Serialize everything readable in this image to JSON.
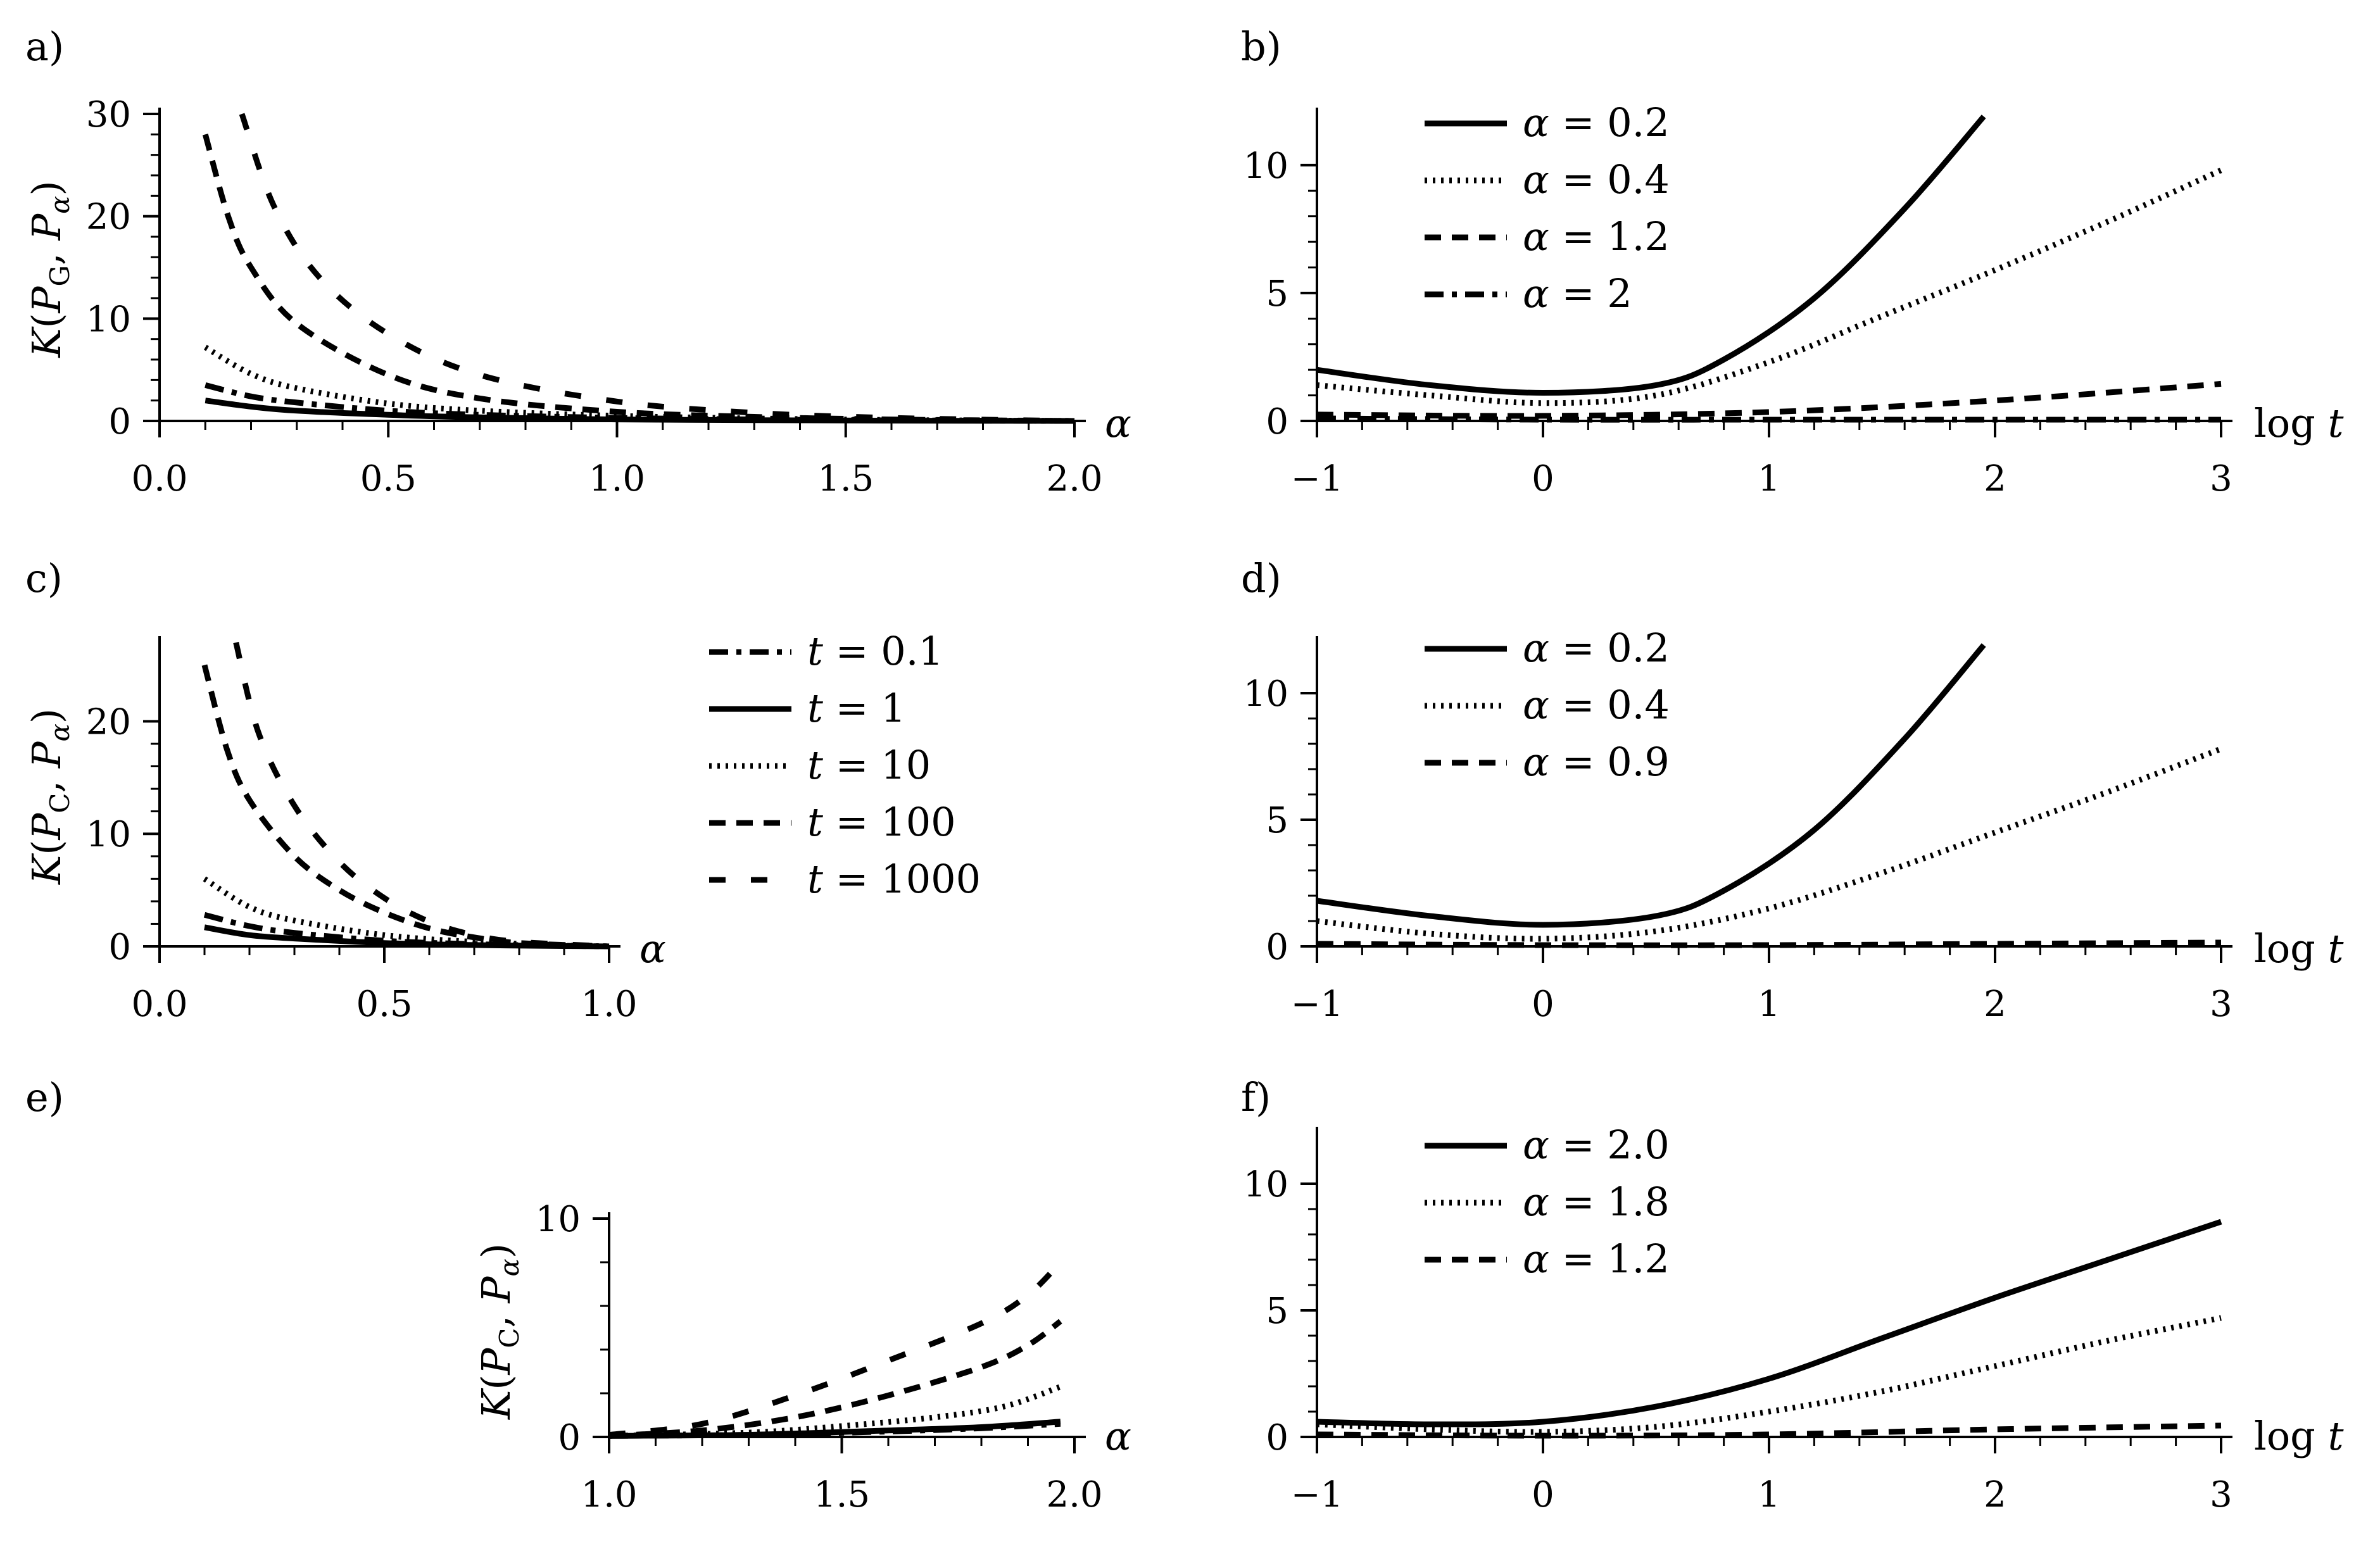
{
  "chart_data": [
    {
      "id": "a",
      "panel_label": "a)",
      "type": "line",
      "xlabel": "α",
      "ylabel": "K(P_G, P_α)",
      "xlim": [
        0,
        2
      ],
      "ylim": [
        0,
        30
      ],
      "xticks": [
        "0.0",
        "0.5",
        "1.0",
        "1.5",
        "2.0"
      ],
      "xtick_values": [
        0,
        0.5,
        1.0,
        1.5,
        2.0
      ],
      "yticks": [
        "0",
        "10",
        "20",
        "30"
      ],
      "ytick_values": [
        0,
        10,
        20,
        30
      ],
      "series": [
        {
          "name": "t = 0.1",
          "style": "dashdot",
          "x": [
            0.1,
            0.2,
            0.3,
            0.5,
            0.7,
            1.0,
            1.3,
            1.6,
            2.0
          ],
          "y": [
            3.5,
            2.4,
            1.8,
            1.0,
            0.6,
            0.3,
            0.15,
            0.06,
            0
          ]
        },
        {
          "name": "t = 1",
          "style": "solid",
          "x": [
            0.1,
            0.2,
            0.3,
            0.5,
            0.7,
            1.0,
            1.3,
            1.6,
            2.0
          ],
          "y": [
            2.0,
            1.4,
            1.0,
            0.6,
            0.35,
            0.15,
            0.08,
            0.03,
            0
          ]
        },
        {
          "name": "t = 10",
          "style": "dotted",
          "x": [
            0.1,
            0.2,
            0.3,
            0.5,
            0.7,
            1.0,
            1.3,
            1.6,
            2.0
          ],
          "y": [
            7.2,
            4.6,
            3.2,
            1.7,
            1.0,
            0.5,
            0.25,
            0.1,
            0
          ]
        },
        {
          "name": "t = 100",
          "style": "dashed",
          "x": [
            0.1,
            0.15,
            0.2,
            0.3,
            0.5,
            0.7,
            1.0,
            1.3,
            1.6,
            2.0
          ],
          "y": [
            28,
            20,
            15,
            9.5,
            4.5,
            2.2,
            0.9,
            0.4,
            0.15,
            0
          ]
        },
        {
          "name": "t = 1000",
          "style": "dashed-wide",
          "x": [
            0.18,
            0.25,
            0.35,
            0.5,
            0.7,
            1.0,
            1.3,
            1.6,
            2.0
          ],
          "y": [
            30,
            21,
            14,
            8.5,
            4.5,
            1.9,
            0.8,
            0.3,
            0
          ]
        }
      ]
    },
    {
      "id": "b",
      "panel_label": "b)",
      "type": "line",
      "xlabel": "log t",
      "ylabel": "",
      "xlim": [
        -1,
        3
      ],
      "ylim": [
        0,
        12
      ],
      "xticks": [
        "−1",
        "0",
        "1",
        "2",
        "3"
      ],
      "xtick_values": [
        -1,
        0,
        1,
        2,
        3
      ],
      "yticks": [
        "0",
        "5",
        "10"
      ],
      "ytick_values": [
        0,
        5,
        10
      ],
      "legend": [
        "α = 0.2",
        "α = 0.4",
        "α = 1.2",
        "α = 2"
      ],
      "series": [
        {
          "name": "α = 0.2",
          "style": "solid",
          "x": [
            -1,
            -0.5,
            0,
            0.5,
            0.8,
            1.2,
            1.6,
            1.95
          ],
          "y": [
            2.0,
            1.4,
            1.1,
            1.4,
            2.4,
            4.8,
            8.3,
            11.9
          ]
        },
        {
          "name": "α = 0.4",
          "style": "dotted",
          "x": [
            -1,
            -0.5,
            0,
            0.5,
            1,
            1.5,
            2,
            2.5,
            3
          ],
          "y": [
            1.4,
            1.0,
            0.7,
            1.0,
            2.3,
            4.1,
            5.9,
            7.8,
            9.8
          ]
        },
        {
          "name": "α = 1.2",
          "style": "dashed",
          "x": [
            -1,
            0,
            1,
            2,
            3
          ],
          "y": [
            0.25,
            0.2,
            0.35,
            0.8,
            1.45
          ]
        },
        {
          "name": "α = 2",
          "style": "dashdot",
          "x": [
            -1,
            0,
            1,
            2,
            3
          ],
          "y": [
            0.1,
            0.05,
            0.05,
            0.05,
            0.05
          ]
        }
      ]
    },
    {
      "id": "c",
      "panel_label": "c)",
      "type": "line",
      "xlabel": "α",
      "ylabel": "K(P_C, P_α)",
      "xlim": [
        0,
        1
      ],
      "ylim": [
        0,
        27
      ],
      "xticks": [
        "0.0",
        "0.5",
        "1.0"
      ],
      "xtick_values": [
        0,
        0.5,
        1.0
      ],
      "yticks": [
        "0",
        "10",
        "20"
      ],
      "ytick_values": [
        0,
        10,
        20
      ],
      "legend": [
        "t = 0.1",
        "t = 1",
        "t = 10",
        "t = 100",
        "t = 1000"
      ],
      "series": [
        {
          "name": "t = 0.1",
          "style": "dashdot",
          "x": [
            0.1,
            0.2,
            0.3,
            0.5,
            0.7,
            0.9,
            1.0
          ],
          "y": [
            2.8,
            1.8,
            1.2,
            0.5,
            0.2,
            0.05,
            0
          ]
        },
        {
          "name": "t = 1",
          "style": "solid",
          "x": [
            0.1,
            0.2,
            0.3,
            0.5,
            0.7,
            0.9,
            1.0
          ],
          "y": [
            1.7,
            1.0,
            0.7,
            0.3,
            0.12,
            0.03,
            0
          ]
        },
        {
          "name": "t = 10",
          "style": "dotted",
          "x": [
            0.1,
            0.2,
            0.3,
            0.5,
            0.7,
            0.9,
            1.0
          ],
          "y": [
            6.0,
            3.5,
            2.3,
            1.0,
            0.4,
            0.1,
            0
          ]
        },
        {
          "name": "t = 100",
          "style": "dashed",
          "x": [
            0.1,
            0.15,
            0.2,
            0.3,
            0.4,
            0.5,
            0.6,
            0.7,
            0.8,
            1.0
          ],
          "y": [
            25,
            17.5,
            13,
            8,
            5,
            3,
            1.6,
            0.8,
            0.3,
            0
          ]
        },
        {
          "name": "t = 1000",
          "style": "dashed-wide",
          "x": [
            0.17,
            0.22,
            0.3,
            0.4,
            0.5,
            0.6,
            0.7,
            0.8,
            1.0
          ],
          "y": [
            27,
            19,
            12.5,
            7.5,
            4.3,
            2.2,
            1.0,
            0.4,
            0
          ]
        }
      ]
    },
    {
      "id": "d",
      "panel_label": "d)",
      "type": "line",
      "xlabel": "log t",
      "ylabel": "",
      "xlim": [
        -1,
        3
      ],
      "ylim": [
        0,
        12
      ],
      "xticks": [
        "−1",
        "0",
        "1",
        "2",
        "3"
      ],
      "xtick_values": [
        -1,
        0,
        1,
        2,
        3
      ],
      "yticks": [
        "0",
        "5",
        "10"
      ],
      "ytick_values": [
        0,
        5,
        10
      ],
      "legend": [
        "α = 0.2",
        "α = 0.4",
        "α = 0.9"
      ],
      "series": [
        {
          "name": "α = 0.2",
          "style": "solid",
          "x": [
            -1,
            -0.5,
            0,
            0.5,
            0.8,
            1.2,
            1.6,
            1.95
          ],
          "y": [
            1.8,
            1.2,
            0.85,
            1.2,
            2.2,
            4.6,
            8.2,
            11.9
          ]
        },
        {
          "name": "α = 0.4",
          "style": "dotted",
          "x": [
            -1,
            -0.5,
            0,
            0.5,
            1,
            1.5,
            2,
            2.5,
            3
          ],
          "y": [
            1.0,
            0.5,
            0.3,
            0.6,
            1.5,
            2.9,
            4.5,
            6.1,
            7.8
          ]
        },
        {
          "name": "α = 0.9",
          "style": "dashed",
          "x": [
            -1,
            0,
            1,
            2,
            3
          ],
          "y": [
            0.1,
            0.05,
            0.05,
            0.1,
            0.15
          ]
        }
      ]
    },
    {
      "id": "e",
      "panel_label": "e)",
      "type": "line",
      "xlabel": "α",
      "ylabel": "K(P_C, P_α)",
      "xlim": [
        1,
        2
      ],
      "ylim": [
        0,
        10
      ],
      "xticks": [
        "1.0",
        "1.5",
        "2.0"
      ],
      "xtick_values": [
        1.0,
        1.5,
        2.0
      ],
      "yticks": [
        "0",
        "10"
      ],
      "ytick_values": [
        0,
        10
      ],
      "series": [
        {
          "name": "t = 0.1",
          "style": "dashdot",
          "x": [
            1.0,
            1.3,
            1.6,
            1.8,
            1.97
          ],
          "y": [
            0.05,
            0.1,
            0.25,
            0.4,
            0.6
          ]
        },
        {
          "name": "t = 1",
          "style": "solid",
          "x": [
            1.0,
            1.3,
            1.6,
            1.8,
            1.97
          ],
          "y": [
            0.05,
            0.1,
            0.3,
            0.45,
            0.7
          ]
        },
        {
          "name": "t = 10",
          "style": "dotted",
          "x": [
            1.0,
            1.3,
            1.5,
            1.7,
            1.85,
            1.97
          ],
          "y": [
            0.05,
            0.2,
            0.5,
            0.9,
            1.4,
            2.3
          ]
        },
        {
          "name": "t = 100",
          "style": "dashed",
          "x": [
            1.0,
            1.2,
            1.4,
            1.6,
            1.8,
            1.9,
            1.97
          ],
          "y": [
            0.05,
            0.3,
            0.9,
            1.9,
            3.2,
            4.2,
            5.3
          ]
        },
        {
          "name": "t = 1000",
          "style": "dashed-wide",
          "x": [
            1.0,
            1.2,
            1.4,
            1.6,
            1.8,
            1.9,
            1.97
          ],
          "y": [
            0.1,
            0.6,
            1.9,
            3.5,
            5.2,
            6.5,
            8.0
          ]
        }
      ]
    },
    {
      "id": "f",
      "panel_label": "f)",
      "type": "line",
      "xlabel": "log t",
      "ylabel": "",
      "xlim": [
        -1,
        3
      ],
      "ylim": [
        0,
        12
      ],
      "xticks": [
        "−1",
        "0",
        "1",
        "2",
        "3"
      ],
      "xtick_values": [
        -1,
        0,
        1,
        2,
        3
      ],
      "yticks": [
        "0",
        "5",
        "10"
      ],
      "ytick_values": [
        0,
        5,
        10
      ],
      "legend": [
        "α = 2.0",
        "α = 1.8",
        "α = 1.2"
      ],
      "series": [
        {
          "name": "α = 2.0",
          "style": "solid",
          "x": [
            -1,
            -0.5,
            0,
            0.5,
            1,
            1.5,
            2,
            2.5,
            3
          ],
          "y": [
            0.6,
            0.5,
            0.6,
            1.2,
            2.3,
            3.9,
            5.5,
            7.0,
            8.5
          ]
        },
        {
          "name": "α = 1.8",
          "style": "dotted",
          "x": [
            -1,
            -0.5,
            0,
            0.5,
            1,
            1.5,
            2,
            2.5,
            3
          ],
          "y": [
            0.5,
            0.3,
            0.2,
            0.4,
            1.0,
            1.8,
            2.8,
            3.8,
            4.7
          ]
        },
        {
          "name": "α = 1.2",
          "style": "dashed",
          "x": [
            -1,
            0,
            1,
            2,
            3
          ],
          "y": [
            0.1,
            0.05,
            0.1,
            0.3,
            0.45
          ]
        }
      ]
    }
  ]
}
